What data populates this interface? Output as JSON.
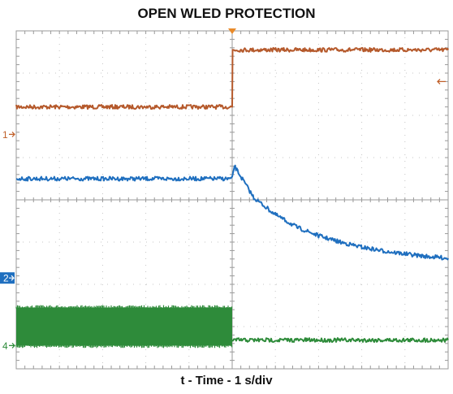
{
  "chart_data": {
    "type": "line",
    "title": "OPEN WLED PROTECTION",
    "xlabel": "t - Time - 1 s/div",
    "ylabel": "",
    "grid": true,
    "divisions": {
      "x": 10,
      "y": 8
    },
    "xlim": [
      0,
      10
    ],
    "ylim": [
      0,
      8
    ],
    "trigger_x": 5,
    "channel_markers": [
      {
        "label": "1",
        "level": 5.55,
        "color": "#c0602a",
        "style": "arrow"
      },
      {
        "label": "2",
        "level": 2.15,
        "color": "#1f6fbf",
        "style": "boxed"
      },
      {
        "label": "4",
        "level": 0.55,
        "color": "#2e8b3a",
        "style": "arrow"
      }
    ],
    "right_marker": {
      "level": 6.8,
      "color": "#c0602a"
    },
    "series": [
      {
        "color": "#b5592b",
        "x": [
          0,
          5,
          5.01,
          10
        ],
        "y": [
          6.2,
          6.2,
          7.55,
          7.55
        ]
      },
      {
        "color": "#1f6fbf",
        "x": [
          0,
          5,
          5.05,
          5.5,
          6,
          6.5,
          7,
          7.5,
          8,
          8.5,
          9,
          9.5,
          10
        ],
        "y": [
          4.5,
          4.5,
          4.8,
          4.05,
          3.65,
          3.35,
          3.15,
          3.0,
          2.88,
          2.79,
          2.72,
          2.66,
          2.62
        ]
      },
      {
        "color": "#2e8b3a",
        "band": true,
        "x": [
          0,
          5
        ],
        "y_low": [
          0.55,
          0.55
        ],
        "y_high": [
          1.45,
          1.45
        ]
      },
      {
        "color": "#2e8b3a",
        "x": [
          5,
          10
        ],
        "y": [
          0.68,
          0.68
        ]
      }
    ]
  }
}
